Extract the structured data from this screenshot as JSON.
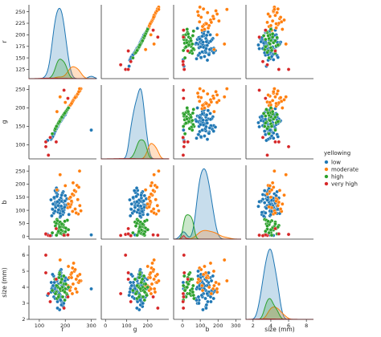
{
  "chart_data": {
    "type": "scatter",
    "kind": "pairplot",
    "variables": [
      {
        "key": "r",
        "label": "r",
        "ylim": [
          105,
          265
        ],
        "yticks": [
          125,
          150,
          175,
          200,
          225,
          250
        ],
        "xlim": [
          60,
          320
        ],
        "xticks": [
          100,
          200,
          300
        ]
      },
      {
        "key": "g",
        "label": "g",
        "ylim": [
          62,
          262
        ],
        "yticks": [
          100,
          150,
          200,
          250
        ],
        "xlim": [
          -20,
          300
        ],
        "xticks": [
          0,
          100,
          200
        ]
      },
      {
        "key": "b",
        "label": "b",
        "ylim": [
          -10,
          272
        ],
        "yticks": [
          0,
          50,
          100,
          150,
          200,
          250
        ],
        "xlim": [
          -50,
          330
        ],
        "xticks": [
          0,
          100,
          200,
          300
        ]
      },
      {
        "key": "size",
        "label": "size (mm)",
        "ylim": [
          2.0,
          6.6
        ],
        "yticks": [
          2,
          3,
          4,
          5,
          6
        ],
        "xlim": [
          1.2,
          8.8
        ],
        "xticks": [
          2,
          4,
          6,
          8
        ]
      }
    ],
    "legend": {
      "title": "yellowing",
      "placement": "right",
      "entries": [
        {
          "name": "low",
          "color": "#1f77b4"
        },
        {
          "name": "moderate",
          "color": "#ff7f0e"
        },
        {
          "name": "high",
          "color": "#2ca02c"
        },
        {
          "name": "very high",
          "color": "#d62728"
        }
      ]
    },
    "groups": [
      {
        "name": "low",
        "points": [
          [
            162,
            140,
            118,
            3.6
          ],
          [
            174,
            160,
            95,
            4.2
          ],
          [
            186,
            170,
            142,
            3.1
          ],
          [
            155,
            128,
            88,
            4.7
          ],
          [
            198,
            182,
            121,
            3.9
          ],
          [
            168,
            150,
            163,
            4.4
          ],
          [
            180,
            168,
            74,
            3.3
          ],
          [
            150,
            120,
            105,
            4.0
          ],
          [
            192,
            175,
            132,
            2.8
          ],
          [
            171,
            152,
            176,
            3.7
          ],
          [
            184,
            165,
            99,
            5.1
          ],
          [
            160,
            135,
            150,
            4.1
          ],
          [
            205,
            190,
            112,
            3.4
          ],
          [
            176,
            158,
            128,
            4.8
          ],
          [
            166,
            148,
            185,
            3.8
          ],
          [
            190,
            178,
            84,
            3.0
          ],
          [
            158,
            132,
            146,
            4.3
          ],
          [
            181,
            163,
            108,
            3.5
          ],
          [
            200,
            185,
            156,
            4.6
          ],
          [
            172,
            150,
            93,
            3.2
          ],
          [
            187,
            168,
            138,
            4.1
          ],
          [
            148,
            118,
            79,
            3.9
          ],
          [
            210,
            198,
            125,
            4.5
          ],
          [
            165,
            142,
            168,
            3.6
          ],
          [
            178,
            160,
            115,
            2.6
          ],
          [
            195,
            180,
            101,
            4.0
          ],
          [
            162,
            138,
            131,
            3.8
          ],
          [
            183,
            170,
            147,
            4.9
          ],
          [
            156,
            128,
            90,
            3.4
          ],
          [
            202,
            186,
            119,
            4.2
          ],
          [
            170,
            152,
            160,
            3.1
          ],
          [
            188,
            172,
            106,
            4.4
          ],
          [
            145,
            115,
            140,
            3.7
          ],
          [
            214,
            200,
            84,
            4.0
          ],
          [
            176,
            157,
            129,
            3.3
          ],
          [
            192,
            176,
            171,
            4.7
          ],
          [
            160,
            136,
            97,
            3.9
          ],
          [
            185,
            166,
            135,
            2.9
          ],
          [
            197,
            184,
            112,
            4.3
          ],
          [
            168,
            146,
            153,
            3.6
          ],
          [
            180,
            163,
            88,
            5.0
          ],
          [
            153,
            124,
            124,
            4.1
          ],
          [
            206,
            193,
            144,
            3.5
          ],
          [
            174,
            155,
            102,
            4.6
          ],
          [
            189,
            171,
            165,
            3.8
          ],
          [
            163,
            140,
            111,
            4.0
          ],
          [
            182,
            164,
            78,
            3.2
          ],
          [
            199,
            181,
            136,
            4.4
          ],
          [
            157,
            131,
            149,
            3.7
          ],
          [
            173,
            154,
            118,
            4.2
          ],
          [
            194,
            177,
            92,
            3.0
          ],
          [
            166,
            144,
            129,
            4.5
          ],
          [
            186,
            169,
            158,
            3.4
          ],
          [
            151,
            122,
            104,
            4.8
          ],
          [
            208,
            195,
            122,
            3.9
          ],
          [
            177,
            159,
            139,
            3.6
          ],
          [
            191,
            174,
            96,
            4.1
          ],
          [
            161,
            137,
            175,
            3.3
          ],
          [
            184,
            167,
            116,
            4.7
          ],
          [
            170,
            149,
            133,
            2.7
          ],
          [
            132,
            112,
            8,
            3.5
          ],
          [
            146,
            118,
            4,
            4.3
          ],
          [
            300,
            140,
            6,
            3.9
          ]
        ]
      },
      {
        "name": "moderate",
        "points": [
          [
            215,
            205,
            145,
            4.6
          ],
          [
            228,
            218,
            96,
            5.2
          ],
          [
            240,
            232,
            172,
            3.9
          ],
          [
            222,
            210,
            122,
            4.8
          ],
          [
            250,
            240,
            86,
            4.3
          ],
          [
            232,
            222,
            158,
            5.5
          ],
          [
            210,
            198,
            110,
            4.1
          ],
          [
            245,
            235,
            195,
            3.7
          ],
          [
            225,
            214,
            131,
            4.9
          ],
          [
            260,
            252,
            98,
            4.4
          ],
          [
            235,
            226,
            176,
            5.0
          ],
          [
            218,
            207,
            113,
            3.8
          ],
          [
            248,
            238,
            141,
            4.7
          ],
          [
            230,
            220,
            205,
            4.2
          ],
          [
            212,
            200,
            124,
            5.3
          ],
          [
            242,
            230,
            90,
            4.5
          ],
          [
            227,
            216,
            162,
            3.6
          ],
          [
            256,
            246,
            118,
            4.8
          ],
          [
            220,
            208,
            150,
            4.0
          ],
          [
            238,
            228,
            105,
            5.1
          ],
          [
            252,
            244,
            188,
            4.3
          ],
          [
            224,
            212,
            135,
            4.6
          ],
          [
            255,
            252,
            250,
            4.4
          ],
          [
            180,
            230,
            236,
            5.7
          ],
          [
            168,
            190,
            178,
            4.1
          ],
          [
            200,
            215,
            194,
            3.9
          ]
        ]
      },
      {
        "name": "high",
        "points": [
          [
            175,
            162,
            48,
            3.5
          ],
          [
            188,
            176,
            22,
            4.0
          ],
          [
            168,
            150,
            65,
            3.3
          ],
          [
            195,
            184,
            35,
            4.2
          ],
          [
            182,
            168,
            12,
            3.8
          ],
          [
            160,
            140,
            55,
            4.5
          ],
          [
            205,
            193,
            28,
            3.6
          ],
          [
            178,
            164,
            42,
            4.9
          ],
          [
            190,
            178,
            8,
            3.4
          ],
          [
            170,
            155,
            60,
            4.1
          ],
          [
            200,
            187,
            18,
            3.9
          ],
          [
            185,
            172,
            38,
            4.4
          ],
          [
            165,
            148,
            50,
            3.7
          ],
          [
            198,
            185,
            5,
            3.2
          ],
          [
            176,
            160,
            30,
            4.6
          ],
          [
            192,
            180,
            45,
            3.8
          ],
          [
            172,
            157,
            15,
            4.0
          ],
          [
            208,
            196,
            62,
            3.5
          ],
          [
            183,
            170,
            25,
            4.3
          ],
          [
            162,
            144,
            40,
            3.6
          ],
          [
            194,
            182,
            10,
            4.7
          ],
          [
            180,
            166,
            55,
            3.9
          ],
          [
            202,
            190,
            32,
            4.2
          ],
          [
            174,
            159,
            20,
            3.4
          ],
          [
            187,
            175,
            48,
            4.5
          ],
          [
            166,
            150,
            5,
            4.1
          ],
          [
            198,
            186,
            58,
            3.7
          ],
          [
            178,
            163,
            36,
            4.8
          ],
          [
            150,
            130,
            14,
            3.8
          ],
          [
            212,
            200,
            26,
            4.0
          ]
        ]
      },
      {
        "name": "very high",
        "points": [
          [
            125,
            95,
            8,
            6.0
          ],
          [
            135,
            72,
            4,
            3.6
          ],
          [
            165,
            108,
            30,
            4.5
          ],
          [
            210,
            226,
            6,
            3.4
          ],
          [
            195,
            248,
            5,
            2.7
          ],
          [
            125,
            108,
            10,
            4.9
          ],
          [
            142,
            120,
            3,
            3.1
          ]
        ]
      }
    ]
  }
}
